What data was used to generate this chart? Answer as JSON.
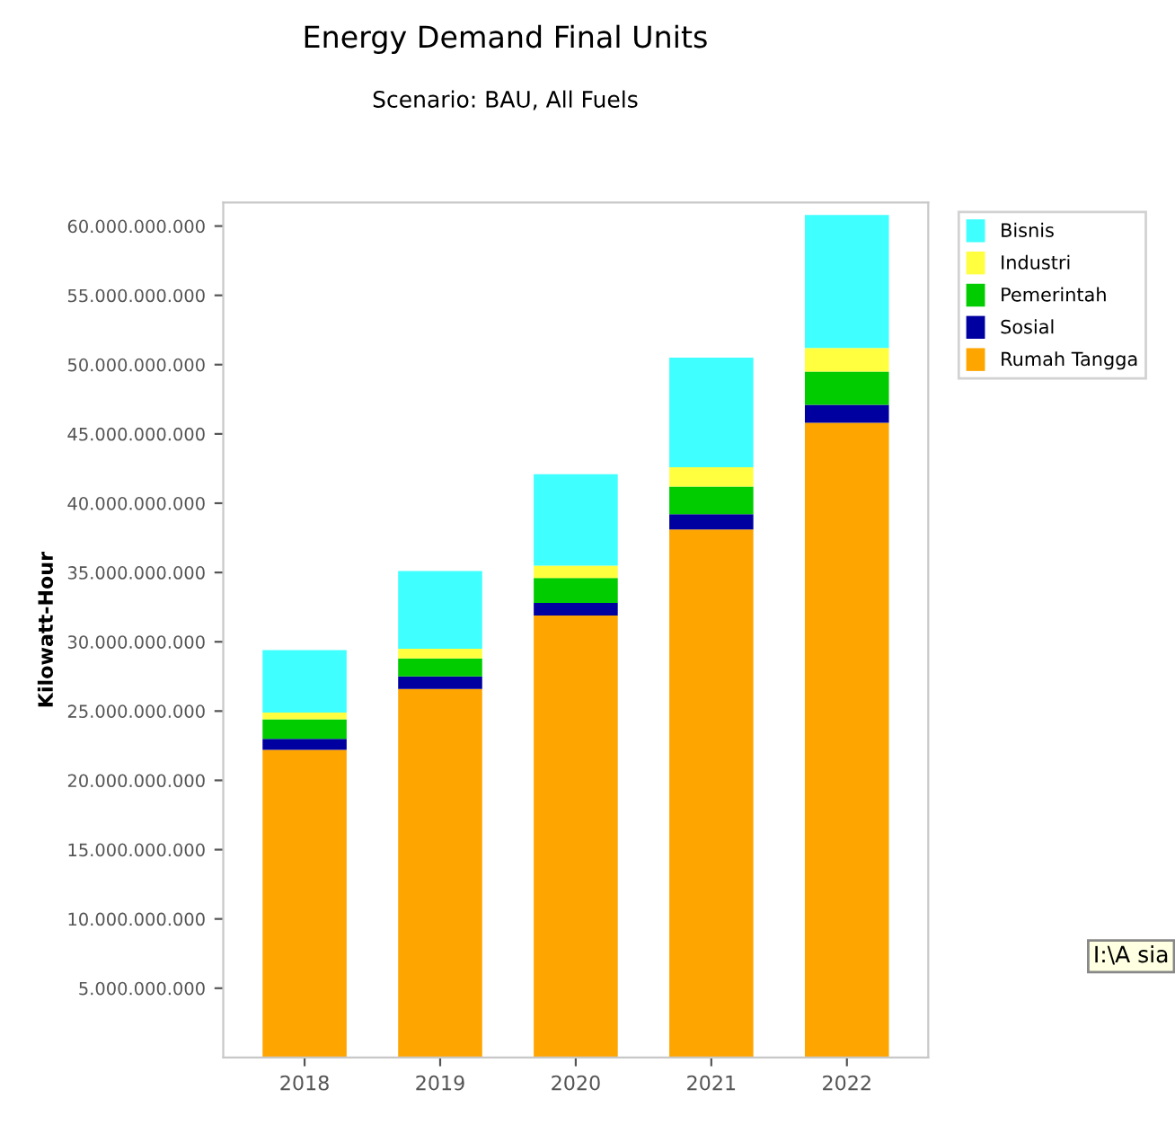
{
  "chart_data": {
    "type": "bar",
    "title": "Energy Demand Final Units",
    "subtitle": "Scenario: BAU, All Fuels",
    "ylabel": "Kilowatt-Hour",
    "categories": [
      "2018",
      "2019",
      "2020",
      "2021",
      "2022"
    ],
    "stacked": true,
    "series": [
      {
        "name": "Rumah Tangga",
        "color": "#ffa500",
        "values": [
          22200000000,
          26600000000,
          31900000000,
          38100000000,
          45800000000
        ]
      },
      {
        "name": "Sosial",
        "color": "#0000a0",
        "values": [
          800000000,
          900000000,
          900000000,
          1100000000,
          1300000000
        ]
      },
      {
        "name": "Pemerintah",
        "color": "#00cc00",
        "values": [
          1400000000,
          1300000000,
          1800000000,
          2000000000,
          2400000000
        ]
      },
      {
        "name": "Industri",
        "color": "#ffff40",
        "values": [
          500000000,
          700000000,
          900000000,
          1400000000,
          1700000000
        ]
      },
      {
        "name": "Bisnis",
        "color": "#40ffff",
        "values": [
          4500000000,
          5600000000,
          6600000000,
          7900000000,
          9600000000
        ]
      }
    ],
    "ylim": [
      0,
      61700000000
    ],
    "yticks": [
      {
        "value": 5000000000,
        "label": "5.000.000.000"
      },
      {
        "value": 10000000000,
        "label": "10.000.000.000"
      },
      {
        "value": 15000000000,
        "label": "15.000.000.000"
      },
      {
        "value": 20000000000,
        "label": "20.000.000.000"
      },
      {
        "value": 25000000000,
        "label": "25.000.000.000"
      },
      {
        "value": 30000000000,
        "label": "30.000.000.000"
      },
      {
        "value": 35000000000,
        "label": "35.000.000.000"
      },
      {
        "value": 40000000000,
        "label": "40.000.000.000"
      },
      {
        "value": 45000000000,
        "label": "45.000.000.000"
      },
      {
        "value": 50000000000,
        "label": "50.000.000.000"
      },
      {
        "value": 55000000000,
        "label": "55.000.000.000"
      },
      {
        "value": 60000000000,
        "label": "60.000.000.000"
      }
    ],
    "legend": "top right",
    "grid": false,
    "annotations": [
      "I:\\A sia"
    ]
  }
}
